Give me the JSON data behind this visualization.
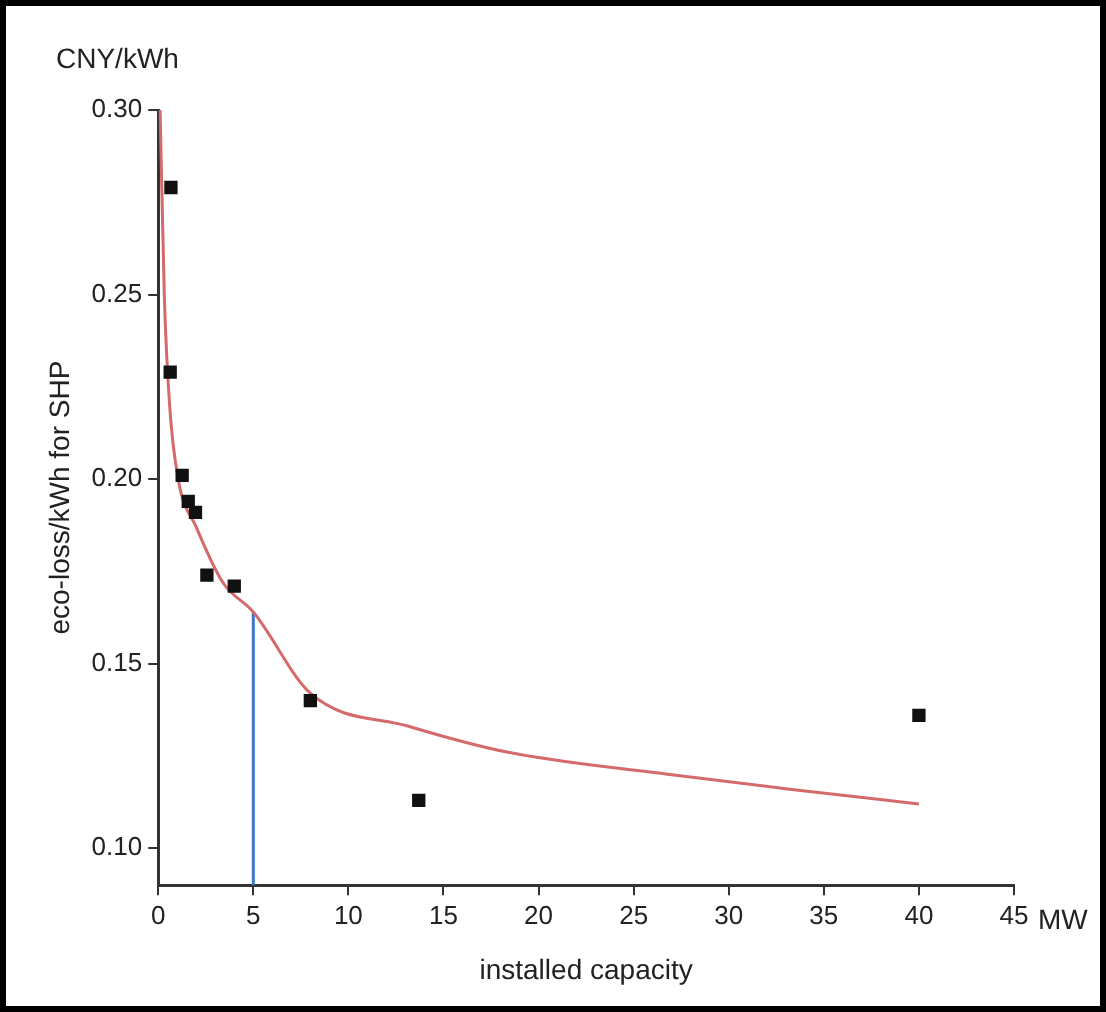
{
  "chart_data": {
    "type": "scatter",
    "xlabel": "installed capacity",
    "ylabel": "eco-loss/kWh for SHP",
    "annotations": [
      "CNY/kWh",
      "MW"
    ],
    "xlim": [
      0,
      45
    ],
    "xticks": [
      0,
      5,
      10,
      15,
      20,
      25,
      30,
      35,
      40,
      45
    ],
    "ylim": [
      0.09,
      0.3
    ],
    "yticks": [
      {
        "value": 0.1,
        "label": "0.10"
      },
      {
        "value": 0.15,
        "label": "0.15"
      },
      {
        "value": 0.2,
        "label": "0.20"
      },
      {
        "value": 0.25,
        "label": "0.25"
      },
      {
        "value": 0.3,
        "label": "0.30"
      }
    ],
    "grid": false,
    "legend": false,
    "marker": "square",
    "series": [
      {
        "color": "#111111",
        "x": [
          0.67,
          0.63,
          1.26,
          1.58,
          1.96,
          2.56,
          4.0,
          8.0,
          13.7,
          40.0
        ],
        "values": [
          0.279,
          0.229,
          0.201,
          0.194,
          0.191,
          0.174,
          0.171,
          0.14,
          0.113,
          0.136
        ]
      },
      {
        "type": "line",
        "marker": "none",
        "color": "#d46a6a",
        "x": [
          0.1,
          0.32,
          0.6,
          1.05,
          2.0,
          3.4,
          5.0,
          8.0,
          13.2,
          18.4,
          26.9,
          33.2,
          40.0
        ],
        "values": [
          0.3,
          0.25,
          0.22,
          0.2,
          0.187,
          0.172,
          0.164,
          0.142,
          0.133,
          0.126,
          0.12,
          0.116,
          0.112
        ]
      },
      {
        "type": "line",
        "marker": "none",
        "color": "#3a78c9",
        "x": [
          5,
          5
        ],
        "values": [
          0.09,
          0.164
        ]
      }
    ]
  }
}
